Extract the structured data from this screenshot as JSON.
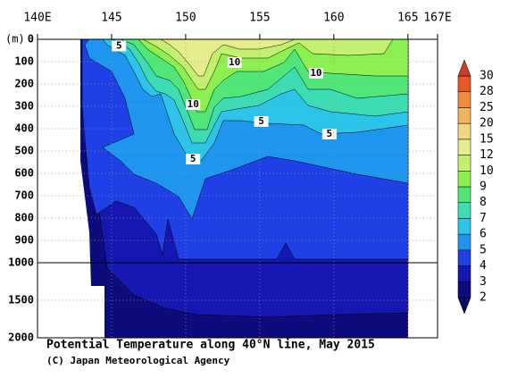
{
  "chart_data": {
    "type": "contour",
    "title": "Potential Temperature along 40°N line, May 2015",
    "credit": "(C) Japan Meteorological Agency",
    "y_label": "(m)",
    "xlim": [
      140,
      167
    ],
    "xticks": [
      {
        "value": 140,
        "label": "140E"
      },
      145,
      150,
      155,
      160,
      165,
      {
        "value": 167,
        "label": "167E"
      }
    ],
    "ylim": [
      0,
      2000
    ],
    "y_break": 1000,
    "yticks": [
      0,
      100,
      200,
      300,
      400,
      500,
      600,
      700,
      800,
      900,
      1000,
      1500,
      2000
    ],
    "grid": true,
    "levels": [
      2,
      3,
      4,
      5,
      6,
      7,
      8,
      9,
      10,
      12,
      15,
      20,
      25,
      28,
      30
    ],
    "colors": [
      "#0c0c7c",
      "#1616b0",
      "#1e40e6",
      "#1e96f0",
      "#2cc4e8",
      "#3cdcb4",
      "#50e678",
      "#8cf050",
      "#c4f070",
      "#e4ec8c",
      "#f0d882",
      "#f0b45a",
      "#f08c3c",
      "#e65a28"
    ],
    "under_color": "#080860",
    "over_color": "#c83c28",
    "contour_labels": [
      {
        "value": 5,
        "x": 145.5,
        "depth": 30
      },
      {
        "value": 10,
        "x": 153.3,
        "depth": 104
      },
      {
        "value": 10,
        "x": 158.8,
        "depth": 152
      },
      {
        "value": 10,
        "x": 150.5,
        "depth": 292
      },
      {
        "value": 5,
        "x": 155.1,
        "depth": 368
      },
      {
        "value": 5,
        "x": 159.7,
        "depth": 424
      },
      {
        "value": 5,
        "x": 150.5,
        "depth": 536
      }
    ]
  }
}
